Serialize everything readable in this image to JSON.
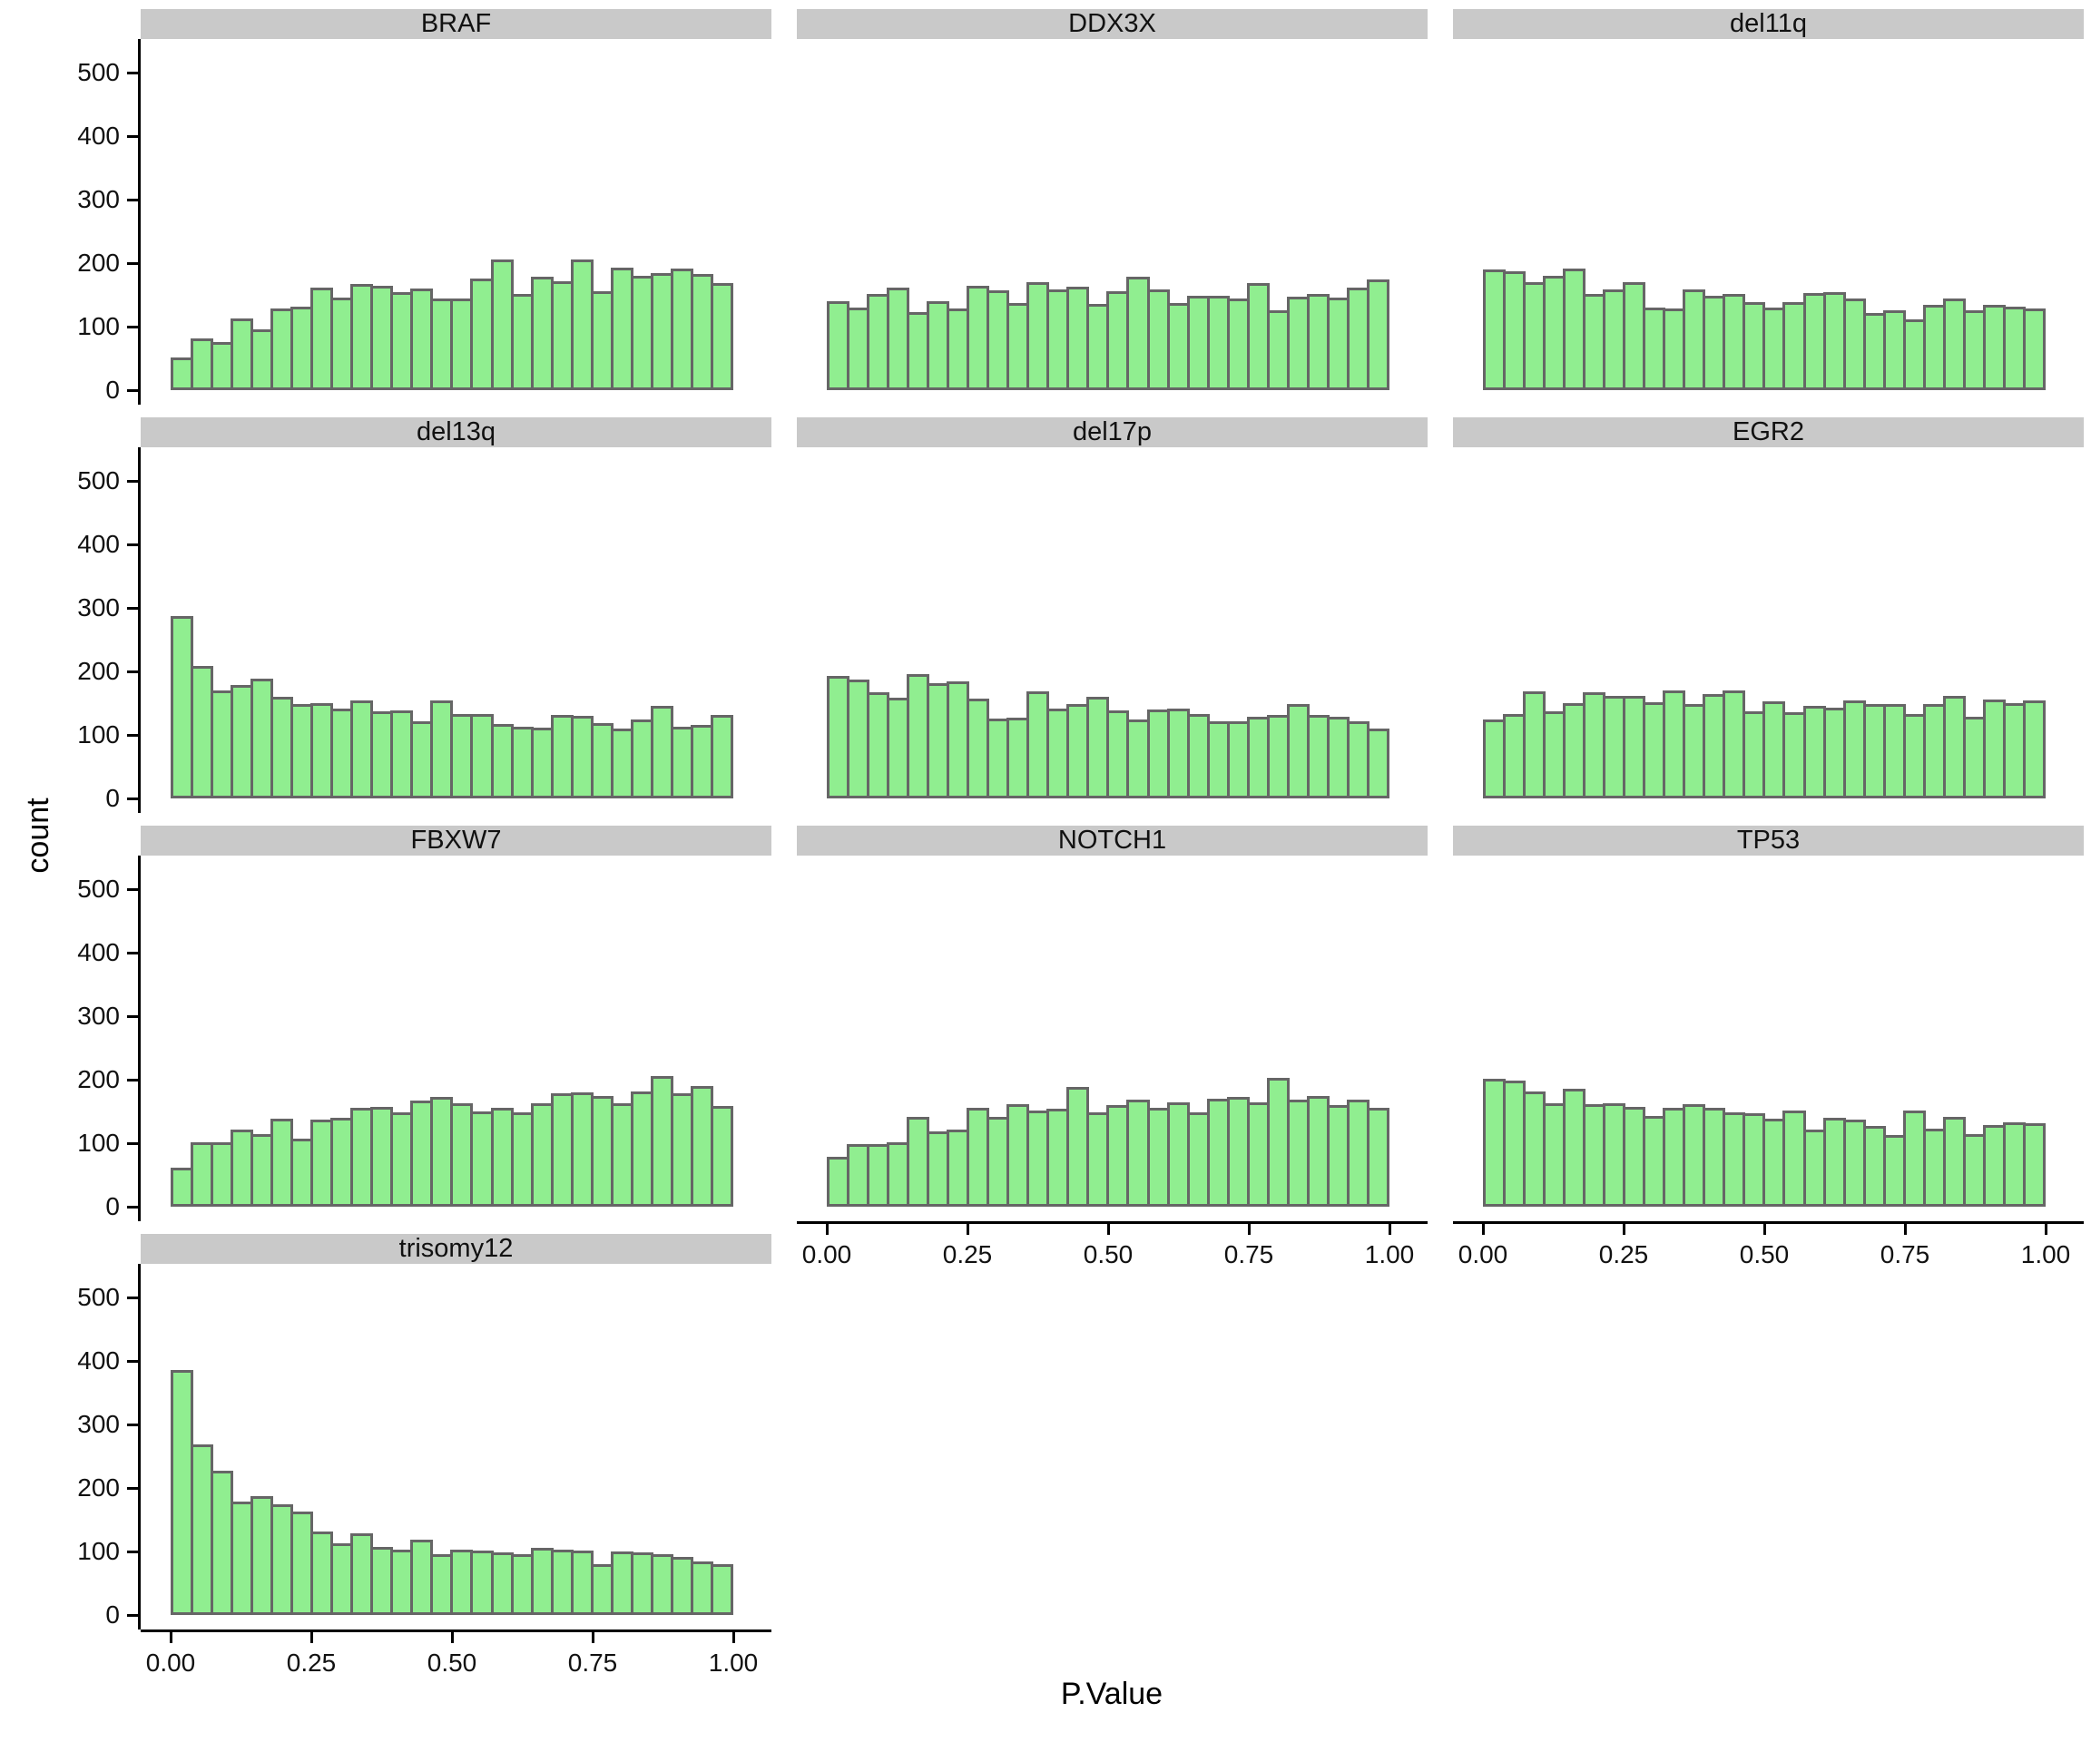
{
  "figure": {
    "y_axis_title": "count",
    "x_axis_title": "P.Value"
  },
  "chart_data": {
    "type": "bar",
    "subtype": "faceted-histogram",
    "title": "",
    "xlabel": "P.Value",
    "ylabel": "count",
    "layout": "facet_wrap 3 columns x 4 rows, shared axes, no gridlines, white background",
    "bins": 28,
    "x_range": [
      0,
      1
    ],
    "x_tick_labels": [
      "0.00",
      "0.25",
      "0.50",
      "0.75",
      "1.00"
    ],
    "y_ticks": [
      0,
      100,
      200,
      300,
      400,
      500
    ],
    "ylim": [
      0,
      540
    ],
    "grid": "off",
    "legend": "none",
    "colors": {
      "bar_fill": "#90EE90",
      "bar_stroke": "#666666",
      "strip_bg": "#C9C9C9",
      "strip_text": "#111111",
      "axis_line": "#000000",
      "axis_text": "#111111"
    },
    "facets": [
      {
        "label": "BRAF",
        "values": [
          52,
          81,
          75,
          113,
          96,
          128,
          131,
          162,
          145,
          167,
          165,
          154,
          160,
          144,
          144,
          176,
          206,
          151,
          179,
          171,
          205,
          156,
          193,
          180,
          184,
          192,
          183,
          169
        ]
      },
      {
        "label": "DDX3X",
        "values": [
          140,
          130,
          152,
          161,
          123,
          140,
          129,
          164,
          157,
          137,
          170,
          158,
          163,
          135,
          155,
          179,
          158,
          137,
          148,
          148,
          144,
          168,
          125,
          147,
          152,
          146,
          161,
          175
        ]
      },
      {
        "label": "del11q",
        "values": [
          190,
          187,
          170,
          180,
          191,
          152,
          158,
          170,
          130,
          128,
          158,
          148,
          151,
          138,
          130,
          139,
          153,
          154,
          144,
          122,
          125,
          112,
          134,
          144,
          125,
          134,
          132,
          128
        ]
      },
      {
        "label": "del13q",
        "values": [
          287,
          208,
          170,
          178,
          188,
          160,
          148,
          150,
          142,
          154,
          137,
          138,
          122,
          154,
          133,
          133,
          117,
          113,
          112,
          131,
          130,
          119,
          110,
          124,
          146,
          113,
          116,
          132
        ]
      },
      {
        "label": "del17p",
        "values": [
          193,
          187,
          167,
          158,
          195,
          181,
          184,
          157,
          126,
          127,
          169,
          141,
          149,
          160,
          139,
          124,
          140,
          142,
          133,
          122,
          122,
          129,
          132,
          148,
          132,
          129,
          121,
          110
        ]
      },
      {
        "label": "EGR2",
        "values": [
          124,
          133,
          168,
          137,
          150,
          167,
          162,
          161,
          151,
          170,
          149,
          164,
          170,
          137,
          153,
          136,
          146,
          143,
          154,
          148,
          149,
          133,
          148,
          162,
          129,
          155,
          150,
          154
        ]
      },
      {
        "label": "FBXW7",
        "values": [
          62,
          102,
          102,
          121,
          114,
          139,
          107,
          137,
          140,
          156,
          157,
          149,
          167,
          173,
          163,
          150,
          155,
          149,
          163,
          178,
          180,
          175,
          163,
          182,
          206,
          178,
          190,
          158
        ]
      },
      {
        "label": "NOTCH1",
        "values": [
          78,
          99,
          99,
          101,
          142,
          118,
          122,
          156,
          141,
          162,
          152,
          154,
          188,
          149,
          160,
          169,
          156,
          165,
          148,
          170,
          173,
          164,
          203,
          168,
          175,
          160,
          169,
          156
        ]
      },
      {
        "label": "TP53",
        "values": [
          201,
          199,
          182,
          163,
          186,
          162,
          163,
          157,
          143,
          156,
          162,
          155,
          148,
          147,
          138,
          151,
          122,
          140,
          137,
          127,
          113,
          151,
          123,
          141,
          114,
          129,
          133,
          131
        ]
      },
      {
        "label": "trisomy12",
        "values": [
          385,
          268,
          227,
          179,
          187,
          175,
          163,
          132,
          113,
          128,
          107,
          103,
          119,
          96,
          103,
          101,
          99,
          95,
          105,
          103,
          101,
          80,
          100,
          98,
          96,
          91,
          84,
          80
        ]
      }
    ]
  }
}
